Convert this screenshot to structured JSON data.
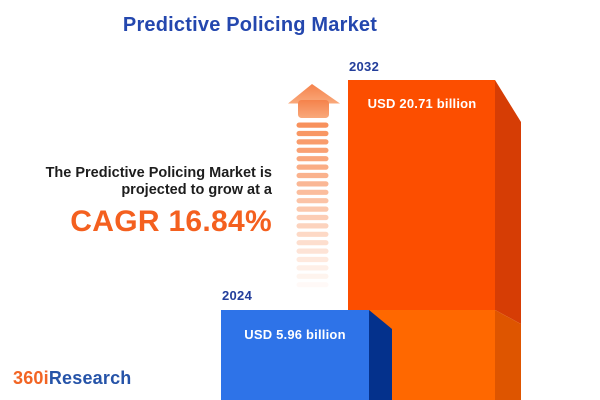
{
  "title": "Predictive Policing Market",
  "description": {
    "line1": "The Predictive Policing Market is",
    "line2": "projected to grow at a",
    "cagr": "CAGR 16.84%"
  },
  "bars": {
    "bar2024": {
      "year": "2024",
      "value_label": "USD 5.96 billion"
    },
    "bar2032": {
      "year": "2032",
      "value_label": "USD 20.71 billion"
    }
  },
  "logo": {
    "part1": "360i",
    "part2": "Research"
  },
  "icons": {
    "growth_arrow": "upward-dashed-arrow"
  },
  "colors": {
    "background": "#FFFFFF",
    "title_blue": "#2447AE",
    "year_label_blue": "#233E9B",
    "text_dark": "#1D1D1D",
    "cagr_orange": "#F4601F",
    "bar_2032_front_upper": "#FC4E00",
    "bar_2032_front_lower": "#FF6800",
    "bar_2032_side_upper": "#D63D05",
    "bar_2032_side_lower": "#DE5500",
    "bar_2024_front": "#2E73E8",
    "bar_2024_side": "#04318C",
    "arrow_orange": "#F8915C",
    "logo_orange": "#F26524",
    "logo_blue": "#2553A8"
  },
  "chart_data": {
    "type": "bar",
    "title": "Predictive Policing Market",
    "categories": [
      "2024",
      "2032"
    ],
    "values": [
      5.96,
      20.71
    ],
    "unit": "USD billion",
    "value_labels": [
      "USD 5.96 billion",
      "USD 20.71 billion"
    ],
    "cagr_percent": 16.84,
    "annotation": "The Predictive Policing Market is projected to grow at a CAGR 16.84%",
    "orientation": "vertical",
    "legend": "none",
    "grid": false,
    "bar_colors": [
      "#2E73E8",
      "#FC4E00"
    ],
    "style": "3d-infographic"
  }
}
